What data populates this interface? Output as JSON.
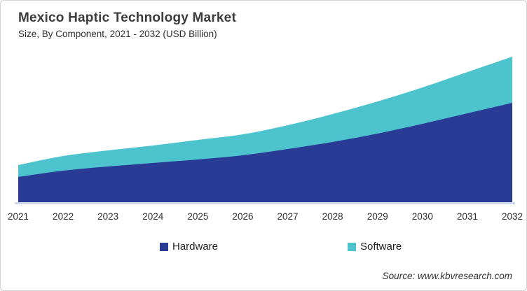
{
  "page": {
    "title": "Mexico Haptic Technology Market",
    "subtitle": "Size, By Component, 2021 - 2032 (USD Billion)",
    "source": "Source: www.kbvresearch.com"
  },
  "colors": {
    "hardware": "#2a3b96",
    "software": "#4cc3cd",
    "axis_line": "#c6d4ef",
    "border": "#d4d4d4",
    "title_text": "#3c3c3c",
    "body_text": "#2f2f2f",
    "background": "#ffffff"
  },
  "legend": [
    {
      "label": "Hardware",
      "color": "#2a3b96"
    },
    {
      "label": "Software",
      "color": "#4cc3cd"
    }
  ],
  "chart_data": {
    "type": "area",
    "stacked": true,
    "title": "Mexico Haptic Technology Market",
    "subtitle": "Size, By Component, 2021 - 2032 (USD Billion)",
    "x": [
      2021,
      2022,
      2023,
      2024,
      2025,
      2026,
      2027,
      2028,
      2029,
      2030,
      2031,
      2032
    ],
    "series": [
      {
        "name": "Hardware",
        "color": "#2a3b96",
        "values": [
          0.36,
          0.45,
          0.51,
          0.56,
          0.61,
          0.67,
          0.76,
          0.86,
          0.98,
          1.12,
          1.27,
          1.42
        ]
      },
      {
        "name": "Software",
        "color": "#4cc3cd",
        "values": [
          0.17,
          0.21,
          0.23,
          0.25,
          0.28,
          0.3,
          0.34,
          0.4,
          0.46,
          0.52,
          0.59,
          0.66
        ]
      }
    ],
    "xlabel": "",
    "ylabel": "",
    "y_axis": {
      "visible": false,
      "values_estimated": true,
      "unit": "USD Billion"
    },
    "grid": false,
    "legend_position": "bottom"
  }
}
